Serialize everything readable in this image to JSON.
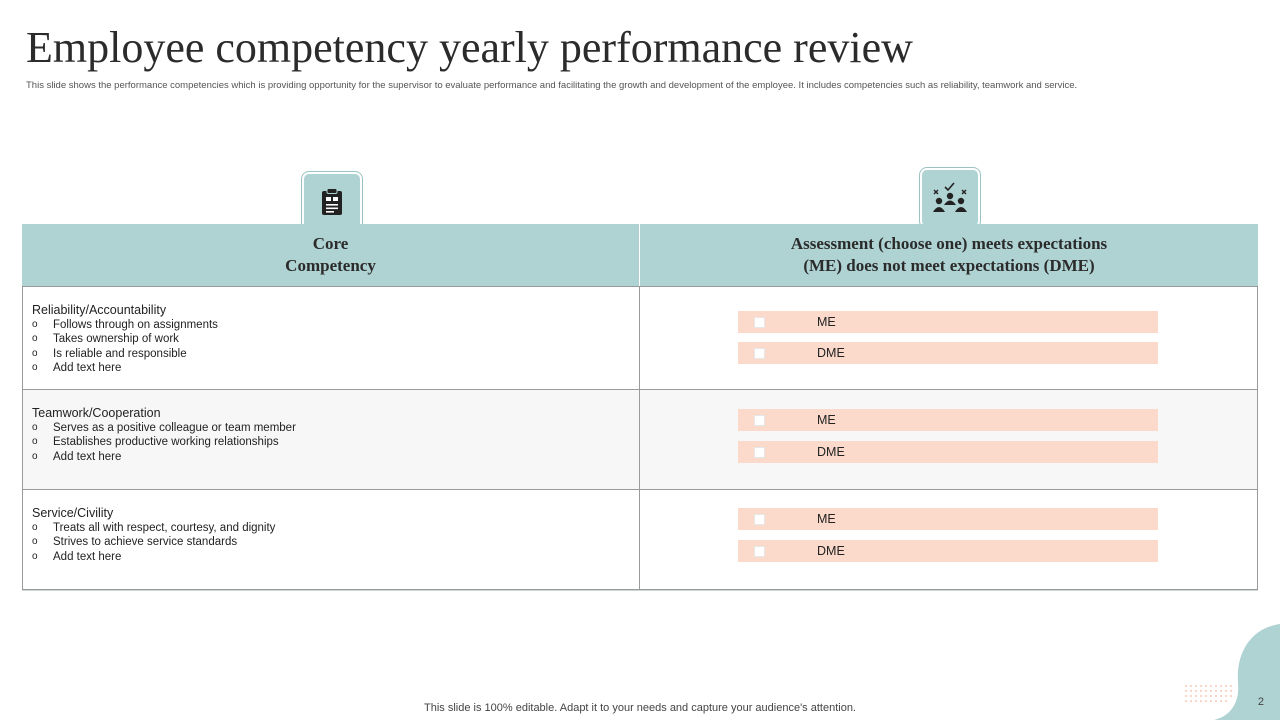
{
  "title": "Employee competency yearly performance review",
  "subtitle": "This slide shows the performance competencies which is providing opportunity for the supervisor to evaluate performance and facilitating the growth and development of the employee. It includes competencies such as reliability, teamwork and service.",
  "header": {
    "left_icon": "clipboard-icon",
    "right_icon": "team-evaluation-icon",
    "col_left": [
      "Core",
      "Competency"
    ],
    "col_right": [
      "Assessment (choose one) meets expectations",
      "(ME) does not meet expectations (DME)"
    ]
  },
  "rows": [
    {
      "heading": "Reliability/Accountability",
      "bullets": [
        "Follows through on assignments",
        "Takes ownership of work",
        "Is reliable and responsible",
        "Add text here"
      ],
      "options": [
        "ME",
        "DME"
      ]
    },
    {
      "heading": "Teamwork/Cooperation",
      "bullets": [
        "Serves as a positive colleague or team member",
        "Establishes productive working relationships",
        "Add text here"
      ],
      "options": [
        "ME",
        "DME"
      ]
    },
    {
      "heading": "Service/Civility",
      "bullets": [
        "Treats all with respect, courtesy, and dignity",
        "Strives to achieve service standards",
        "Add text here"
      ],
      "options": [
        "ME",
        "DME"
      ]
    }
  ],
  "footer": "This slide is 100% editable. Adapt it to your needs and capture your audience's attention.",
  "page_number": "2",
  "colors": {
    "accent": "#afd2d2",
    "option_fill": "#fcdacb"
  }
}
